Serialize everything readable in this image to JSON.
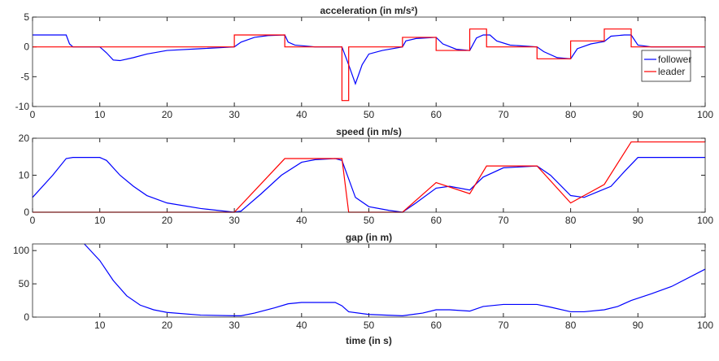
{
  "chart_data": [
    {
      "type": "line",
      "title": "acceleration (in m/s²)",
      "xlim": [
        0,
        100
      ],
      "xticks": [
        0,
        10,
        20,
        30,
        40,
        50,
        60,
        70,
        80,
        90,
        100
      ],
      "ylim": [
        -10,
        5
      ],
      "yticks": [
        -10,
        -5,
        0,
        5
      ],
      "grid": false,
      "legend": "east",
      "series": [
        {
          "name": "follower",
          "color": "#0000ff",
          "x": [
            0,
            5,
            5.5,
            6,
            10,
            11,
            12,
            13,
            15,
            17,
            20,
            25,
            30,
            31,
            33,
            35,
            37.5,
            38,
            39,
            42,
            46,
            47,
            48,
            49,
            50,
            52,
            55,
            55.5,
            57,
            60,
            61,
            63,
            65,
            66,
            67,
            68,
            69,
            71,
            75,
            76,
            78,
            80,
            81,
            83,
            85,
            86,
            88,
            89,
            90,
            92,
            100
          ],
          "values": [
            2,
            2,
            0.5,
            0,
            0,
            -1,
            -2.2,
            -2.3,
            -1.8,
            -1.2,
            -0.6,
            -0.3,
            0,
            0.8,
            1.6,
            1.9,
            2,
            0.8,
            0.3,
            0,
            0,
            -3,
            -6.2,
            -3,
            -1.2,
            -0.6,
            0,
            1,
            1.4,
            1.6,
            0.5,
            -0.4,
            -0.6,
            1.5,
            2,
            2,
            1,
            0.3,
            0,
            -0.8,
            -1.8,
            -2,
            -0.3,
            0.5,
            0.9,
            1.8,
            2,
            2,
            0.3,
            0,
            0
          ]
        },
        {
          "name": "leader",
          "color": "#ff0000",
          "x": [
            0,
            30,
            30,
            37.5,
            37.5,
            46,
            46,
            47,
            47,
            55,
            55,
            60,
            60,
            65,
            65,
            67.5,
            67.5,
            75,
            75,
            80,
            80,
            85,
            85,
            89,
            89,
            100
          ],
          "values": [
            0,
            0,
            2,
            2,
            0,
            0,
            -9,
            -9,
            0,
            0,
            1.6,
            1.6,
            -0.6,
            -0.6,
            3,
            3,
            0,
            0,
            -2,
            -2,
            1,
            1,
            3,
            3,
            0,
            0
          ]
        }
      ]
    },
    {
      "type": "line",
      "title": "speed (in m/s)",
      "xlim": [
        0,
        100
      ],
      "xticks": [
        0,
        10,
        20,
        30,
        40,
        50,
        60,
        70,
        80,
        90,
        100
      ],
      "ylim": [
        0,
        20
      ],
      "yticks": [
        0,
        10,
        20
      ],
      "grid": false,
      "series": [
        {
          "color": "#0000ff",
          "x": [
            0,
            3,
            5,
            6,
            10,
            11,
            13,
            15,
            17,
            20,
            25,
            30,
            31,
            34,
            37,
            40,
            42,
            45,
            46,
            47,
            48,
            50,
            53,
            55,
            57,
            60,
            62,
            65,
            67,
            70,
            75,
            77,
            80,
            82,
            84,
            86,
            88,
            90,
            100
          ],
          "values": [
            4,
            10,
            14.5,
            14.8,
            14.8,
            14,
            10,
            7,
            4.5,
            2.5,
            1,
            0,
            0.3,
            5,
            10,
            13.5,
            14.2,
            14.5,
            14,
            9,
            4,
            1.5,
            0.5,
            0,
            2.5,
            6.5,
            7,
            6,
            9.5,
            12,
            12.5,
            10,
            4.5,
            4,
            5.5,
            7,
            11,
            14.8,
            14.8
          ]
        },
        {
          "color": "#ff0000",
          "x": [
            0,
            30,
            37.5,
            46,
            47,
            55,
            60,
            65,
            67.5,
            75,
            80,
            85,
            89,
            100
          ],
          "values": [
            0,
            0,
            14.5,
            14.5,
            0,
            0,
            8,
            5,
            12.5,
            12.5,
            2.5,
            7.5,
            19,
            19
          ]
        }
      ]
    },
    {
      "type": "line",
      "title": "gap (in m)",
      "xlabel": "time (in s)",
      "xlim": [
        0,
        100
      ],
      "xticks": [
        10,
        20,
        30,
        40,
        50,
        60,
        70,
        80,
        90,
        100
      ],
      "ylim": [
        0,
        110
      ],
      "yticks": [
        0,
        50,
        100
      ],
      "grid": false,
      "series": [
        {
          "color": "#0000ff",
          "x": [
            7.7,
            10,
            12,
            14,
            16,
            18,
            20,
            25,
            30,
            31,
            33,
            36,
            38,
            40,
            45,
            46,
            47,
            50,
            55,
            58,
            60,
            62,
            65,
            67,
            70,
            75,
            77,
            80,
            82,
            85,
            87,
            89,
            92,
            95,
            100
          ],
          "values": [
            110,
            85,
            55,
            32,
            18,
            11,
            7,
            3,
            2,
            2,
            6,
            14,
            20,
            22,
            22,
            17,
            8,
            4,
            2,
            6,
            11,
            11,
            9,
            16,
            19,
            19,
            15,
            8,
            8,
            11,
            16,
            25,
            35,
            46,
            72
          ]
        }
      ]
    }
  ]
}
